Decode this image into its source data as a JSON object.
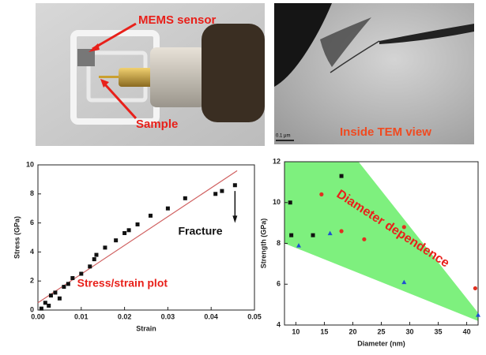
{
  "images": [
    {
      "labels": [
        "MEMS sensor",
        "Sample"
      ]
    },
    {
      "labels": [
        "Inside TEM view"
      ],
      "scale_bar": "0.1 μm"
    }
  ],
  "chart_data": [
    {
      "type": "scatter",
      "x_label": "Strain",
      "y_label": "Stress (GPa)",
      "annotations": [
        "Fracture",
        "Stress/strain plot"
      ],
      "xlim": [
        0,
        0.05
      ],
      "xticks": [
        {
          "value": 0,
          "label": "0.00"
        },
        0.01,
        0.02,
        0.03,
        0.04,
        0.05
      ],
      "ylim": [
        0,
        10
      ],
      "yticks": [
        0,
        2,
        4,
        6,
        8,
        10
      ],
      "series": [
        {
          "color": "#111111",
          "marker": "square",
          "x": [
            0.0008,
            0.0017,
            0.0025,
            0.003,
            0.004,
            0.005,
            0.006,
            0.007,
            0.008,
            0.01,
            0.012,
            0.013,
            0.0135,
            0.0155,
            0.018,
            0.02,
            0.021,
            0.023,
            0.026,
            0.03,
            0.034,
            0.041,
            0.0425,
            0.0455
          ],
          "values": [
            0.1,
            0.5,
            0.3,
            1.0,
            1.2,
            0.8,
            1.6,
            1.8,
            2.2,
            2.5,
            3.0,
            3.5,
            3.8,
            4.3,
            4.8,
            5.3,
            5.5,
            5.9,
            6.5,
            7.0,
            7.7,
            8.0,
            8.2,
            8.6
          ]
        }
      ],
      "fit_line": {
        "color": "#d06060",
        "x": [
          0,
          0.046
        ],
        "values": [
          0.5,
          9.6
        ]
      }
    },
    {
      "type": "scatter",
      "x_label": "Diameter (nm)",
      "y_label": "Strength (GPa)",
      "annotations": [
        "Diameter dependence"
      ],
      "xlim": [
        8,
        42
      ],
      "xticks": [
        10,
        15,
        20,
        25,
        30,
        35,
        40
      ],
      "ylim": [
        4,
        12
      ],
      "yticks": [
        4,
        6,
        8,
        10,
        12
      ],
      "band": {
        "color": "#7ef07e",
        "x": [
          8,
          21,
          42,
          42,
          8
        ],
        "values": [
          12,
          12,
          4.6,
          4.2,
          8
        ]
      },
      "series": [
        {
          "color": "#111111",
          "marker": "square",
          "x": [
            9,
            9.2,
            13,
            18
          ],
          "values": [
            10,
            8.4,
            8.4,
            11.3
          ]
        },
        {
          "color": "#e03020",
          "marker": "circle",
          "x": [
            14.5,
            18,
            22,
            29,
            41.5
          ],
          "values": [
            10.4,
            8.6,
            8.2,
            8.8,
            5.8
          ]
        },
        {
          "color": "#2050d0",
          "marker": "triangle",
          "x": [
            10.5,
            16,
            29,
            42
          ],
          "values": [
            7.9,
            8.5,
            6.1,
            4.5
          ]
        }
      ]
    }
  ]
}
